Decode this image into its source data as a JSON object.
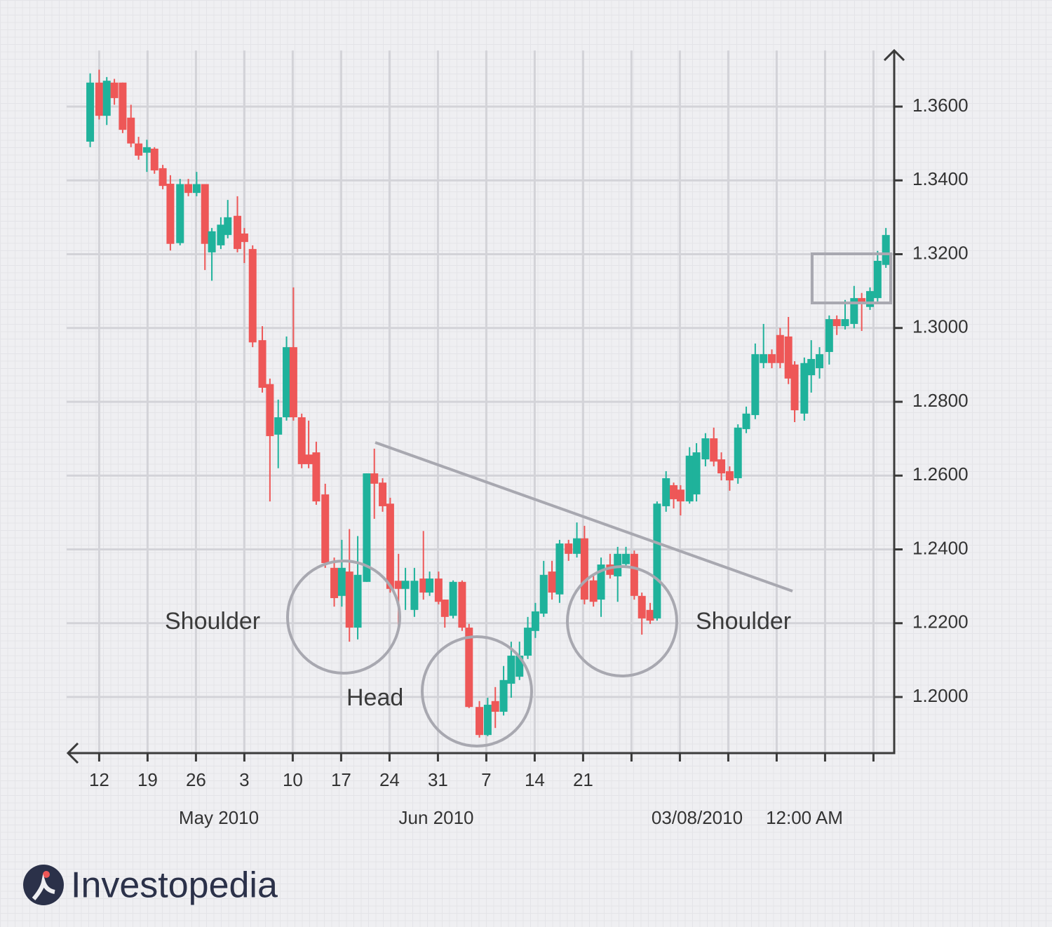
{
  "chart_data": {
    "type": "candlestick",
    "x": [
      -1.3,
      0,
      1.1,
      2.2,
      3.4,
      4.6,
      5.7,
      6.9,
      8.0,
      9.2,
      10.3,
      11.7,
      12.9,
      14.1,
      15.3,
      16.3,
      17.6,
      18.6,
      20.0,
      21.0,
      22.2,
      23.6,
      24.7,
      25.9,
      27.1,
      28.1,
      29.3,
      30.3,
      31.4,
      32.7,
      34.0,
      35.1,
      36.2,
      37.4,
      38.7,
      39.8,
      41.0,
      42.1,
      43.3,
      44.3,
      45.6,
      46.9,
      47.8,
      49.1,
      50.0,
      51.2,
      52.5,
      53.5,
      55.0,
      56.2,
      57.3,
      58.5,
      59.6,
      60.8,
      62.0,
      63.1,
      64.3,
      65.5,
      66.6,
      67.9,
      69.1,
      70.2,
      71.5,
      72.6,
      73.9,
      75.0,
      76.2,
      77.4,
      78.5,
      79.7,
      80.7,
      82.0,
      83.1,
      84.1,
      85.4,
      86.4,
      87.7,
      88.9,
      90.0,
      91.2,
      92.4,
      93.6,
      94.9,
      96.1,
      97.3,
      98.5,
      99.7,
      100.6,
      102.0,
      103.0,
      104.2,
      105.6,
      106.7,
      107.9,
      109.2,
      110.3,
      111.5,
      112.6,
      113.8
    ],
    "open": [
      1.3505,
      1.3665,
      1.3575,
      1.3665,
      1.3665,
      1.357,
      1.35,
      1.3475,
      1.3486,
      1.3433,
      1.3391,
      1.323,
      1.339,
      1.3366,
      1.339,
      1.3205,
      1.3224,
      1.3252,
      1.3304,
      1.3256,
      1.3214,
      1.2967,
      1.2848,
      1.2711,
      1.2758,
      1.2948,
      1.2758,
      1.2657,
      1.2663,
      1.2549,
      1.235,
      1.2274,
      1.234,
      1.2188,
      1.2312,
      1.2606,
      1.2581,
      1.2524,
      1.2315,
      1.2293,
      1.2236,
      1.2321,
      1.2283,
      1.2321,
      1.2264,
      1.222,
      1.2312,
      1.2188,
      1.1973,
      1.1897,
      1.1989,
      1.196,
      1.2036,
      1.2055,
      1.2112,
      1.2179,
      1.2226,
      1.234,
      1.2278,
      1.2416,
      1.2388,
      1.243,
      1.2316,
      1.2264,
      1.2359,
      1.2327,
      1.236,
      1.2388,
      1.2274,
      1.2236,
      1.2213,
      1.2517,
      1.2574,
      1.2562,
      1.253,
      1.2549,
      1.2644,
      1.2701,
      1.2644,
      1.2612,
      1.2593,
      1.2726,
      1.2764,
      1.2905,
      1.2929,
      1.2981,
      1.2977,
      1.2901,
      1.2768,
      1.2872,
      1.2891,
      1.2935,
      1.3024,
      1.3005,
      1.3011,
      1.3081,
      1.3057,
      1.3081,
      1.3171
    ],
    "high": [
      1.369,
      1.37,
      1.368,
      1.3675,
      1.3665,
      1.3605,
      1.3518,
      1.351,
      1.349,
      1.3442,
      1.3414,
      1.3404,
      1.3404,
      1.3423,
      1.339,
      1.3271,
      1.33,
      1.3347,
      1.3357,
      1.3271,
      1.3224,
      1.3005,
      1.2863,
      1.2806,
      1.2977,
      1.311,
      1.2768,
      1.2749,
      1.2692,
      1.2578,
      1.2378,
      1.2426,
      1.2455,
      1.2436,
      1.2606,
      1.2673,
      1.2593,
      1.254,
      1.2388,
      1.235,
      1.235,
      1.245,
      1.234,
      1.234,
      1.2264,
      1.2316,
      1.2316,
      1.2198,
      1.1989,
      1.1998,
      1.2027,
      1.2084,
      1.215,
      1.215,
      1.2217,
      1.2255,
      1.2369,
      1.2369,
      1.2426,
      1.2426,
      1.2473,
      1.2464,
      1.2331,
      1.2378,
      1.2388,
      1.2407,
      1.2407,
      1.2397,
      1.2283,
      1.2255,
      1.253,
      1.2612,
      1.2581,
      1.2574,
      1.2677,
      1.2688,
      1.2715,
      1.273,
      1.2663,
      1.2625,
      1.2739,
      1.2787,
      1.2958,
      1.3011,
      1.2942,
      1.3,
      1.303,
      1.291,
      1.292,
      1.2967,
      1.2948,
      1.3034,
      1.3034,
      1.3076,
      1.3114,
      1.3095,
      1.311,
      1.3209,
      1.3271
    ],
    "low": [
      1.349,
      1.3565,
      1.355,
      1.3605,
      1.3528,
      1.349,
      1.3456,
      1.3423,
      1.3418,
      1.3376,
      1.321,
      1.3224,
      1.3357,
      1.3357,
      1.3157,
      1.3128,
      1.3214,
      1.3243,
      1.3205,
      1.3176,
      1.2948,
      1.2825,
      1.253,
      1.262,
      1.2749,
      1.2749,
      1.262,
      1.262,
      1.2521,
      1.235,
      1.2245,
      1.2245,
      1.215,
      1.2156,
      1.2312,
      1.2483,
      1.2502,
      1.2283,
      1.2194,
      1.2236,
      1.2217,
      1.2264,
      1.2274,
      1.2251,
      1.2188,
      1.2213,
      1.2179,
      1.197,
      1.189,
      1.1894,
      1.1916,
      1.195,
      1.1998,
      1.2046,
      1.2103,
      1.216,
      1.2217,
      1.2264,
      1.2255,
      1.2369,
      1.2378,
      1.2251,
      1.2245,
      1.2217,
      1.2321,
      1.2258,
      1.235,
      1.2264,
      1.2169,
      1.2198,
      1.2207,
      1.2502,
      1.2511,
      1.2492,
      1.2524,
      1.253,
      1.2625,
      1.2625,
      1.2587,
      1.2559,
      1.2578,
      1.2715,
      1.2753,
      1.2891,
      1.2891,
      1.2891,
      1.2848,
      1.2745,
      1.2749,
      1.2825,
      1.2863,
      1.2901,
      1.2981,
      1.2996,
      1.2999,
      1.2992,
      1.3049,
      1.3072,
      1.3163
    ],
    "close": [
      1.3665,
      1.3575,
      1.367,
      1.3623,
      1.3537,
      1.35,
      1.3467,
      1.349,
      1.3427,
      1.3385,
      1.3228,
      1.339,
      1.3366,
      1.339,
      1.3228,
      1.3262,
      1.328,
      1.33,
      1.3214,
      1.3233,
      1.2961,
      1.2838,
      1.2707,
      1.2758,
      1.2948,
      1.2758,
      1.2631,
      1.2631,
      1.253,
      1.2363,
      1.2268,
      1.235,
      1.2188,
      1.2331,
      1.2606,
      1.2578,
      1.2517,
      1.2293,
      1.2293,
      1.2315,
      1.2315,
      1.2283,
      1.2321,
      1.2258,
      1.2217,
      1.2312,
      1.2188,
      1.1973,
      1.1897,
      1.1979,
      1.196,
      1.2046,
      1.2112,
      1.2112,
      1.2188,
      1.2232,
      1.2331,
      1.2283,
      1.2416,
      1.2388,
      1.243,
      1.2264,
      1.2258,
      1.2359,
      1.2331,
      1.2388,
      1.2388,
      1.2274,
      1.2213,
      1.2207,
      1.2524,
      1.2593,
      1.2536,
      1.253,
      1.2654,
      1.2663,
      1.2701,
      1.2638,
      1.2606,
      1.2587,
      1.273,
      1.2768,
      1.2929,
      1.2929,
      1.2905,
      1.2905,
      1.2863,
      1.2777,
      1.2905,
      1.2916,
      1.2929,
      1.3024,
      1.3005,
      1.3024,
      1.3081,
      1.3068,
      1.31,
      1.3182,
      1.3252
    ],
    "up_color": "#1fb29b",
    "down_color": "#ee5757",
    "xlim": [
      -4.2,
      115
    ],
    "xticks": [
      {
        "value": 0,
        "label": "12"
      },
      {
        "value": 7,
        "label": "19"
      },
      {
        "value": 14,
        "label": "26"
      },
      {
        "value": 21,
        "label": "3"
      },
      {
        "value": 28,
        "label": "10"
      },
      {
        "value": 35,
        "label": "17"
      },
      {
        "value": 42,
        "label": "24"
      },
      {
        "value": 49,
        "label": "31"
      },
      {
        "value": 56,
        "label": "7"
      },
      {
        "value": 63,
        "label": "14"
      },
      {
        "value": 70,
        "label": "21"
      },
      {
        "value": 77,
        "label": null
      },
      {
        "value": 84,
        "label": null
      },
      {
        "value": 91,
        "label": null
      },
      {
        "value": 98,
        "label": null
      },
      {
        "value": 105,
        "label": null
      },
      {
        "value": 112,
        "label": null
      }
    ],
    "x_period_labels": [
      "May 2010",
      "Jun 2010",
      "03/08/2010",
      "12:00 AM"
    ],
    "ylim": [
      1.1848,
      1.3752
    ],
    "yticks": [
      {
        "value": 1.2,
        "label": "1.2000"
      },
      {
        "value": 1.22,
        "label": "1.2200"
      },
      {
        "value": 1.24,
        "label": "1.2400"
      },
      {
        "value": 1.26,
        "label": "1.2600"
      },
      {
        "value": 1.28,
        "label": "1.2800"
      },
      {
        "value": 1.3,
        "label": "1.3000"
      },
      {
        "value": 1.32,
        "label": "1.3200"
      },
      {
        "value": 1.34,
        "label": "1.3400"
      },
      {
        "value": 1.36,
        "label": "1.3600"
      }
    ],
    "grid": true,
    "annotations": [
      "Shoulder",
      "Head",
      "Shoulder"
    ]
  },
  "logo": "Investopedia"
}
